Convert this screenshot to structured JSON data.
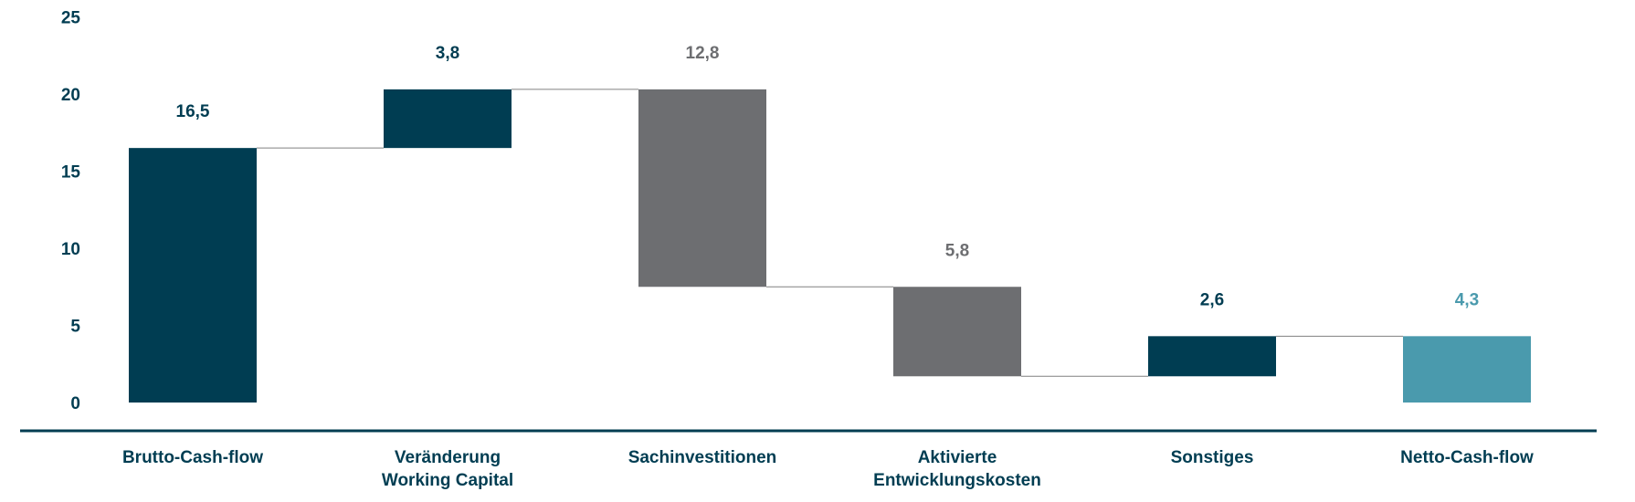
{
  "chart_data": {
    "type": "bar",
    "subtype": "waterfall",
    "title": "",
    "xlabel": "",
    "ylabel": "",
    "ylim": [
      0,
      25
    ],
    "y_ticks": [
      "0",
      "5",
      "10",
      "15",
      "20",
      "25"
    ],
    "grid": false,
    "categories": [
      [
        "Brutto-Cash-flow"
      ],
      [
        "Veränderung",
        "Working Capital"
      ],
      [
        "Sachinvestitionen"
      ],
      [
        "Aktivierte",
        "Entwicklungskosten"
      ],
      [
        "Sonstiges"
      ],
      [
        "Netto-Cash-flow"
      ]
    ],
    "values": [
      16.5,
      3.8,
      -12.8,
      -5.8,
      2.6,
      4.3
    ],
    "bar_ranges": [
      [
        0,
        16.5
      ],
      [
        16.5,
        20.3
      ],
      [
        7.5,
        20.3
      ],
      [
        1.7,
        7.5
      ],
      [
        1.7,
        4.3
      ],
      [
        0,
        4.3
      ]
    ],
    "value_labels": [
      "16,5",
      "3,8",
      "12,8",
      "5,8",
      "2,6",
      "4,3"
    ],
    "colors": {
      "positive": "#003d52",
      "negative": "#6d6e71",
      "total": "#4a9aad",
      "axis": "#003d52",
      "connector": "#808080"
    },
    "bar_colors": [
      "#003d52",
      "#003d52",
      "#6d6e71",
      "#6d6e71",
      "#003d52",
      "#4a9aad"
    ],
    "label_colors": [
      "#003d52",
      "#003d52",
      "#6d6e71",
      "#6d6e71",
      "#003d52",
      "#4a9aad"
    ]
  }
}
